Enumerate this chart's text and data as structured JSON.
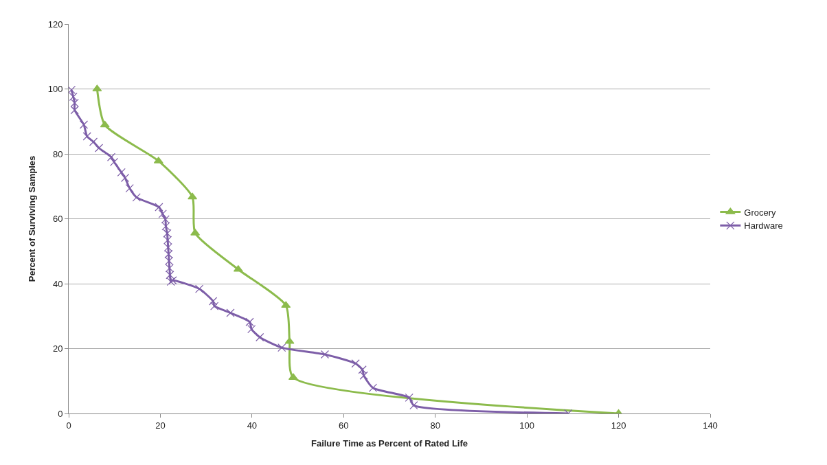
{
  "chart_data": {
    "type": "line",
    "xlabel": "Failure Time as Percent of Rated Life",
    "ylabel": "Percent of Surviving Samples",
    "xlim": [
      0,
      140
    ],
    "xticks": [
      0,
      20,
      40,
      60,
      80,
      100,
      120,
      140
    ],
    "ylim": [
      0,
      120
    ],
    "yticks": [
      0,
      20,
      40,
      60,
      80,
      100,
      120
    ],
    "grid": "y",
    "legend": "right",
    "series": [
      {
        "name": "Grocery",
        "color": "#8cbb4c",
        "marker": "triangle",
        "x": [
          6.2,
          7.9,
          19.6,
          27,
          27.6,
          37,
          47.4,
          48.2,
          49,
          120
        ],
        "values": [
          100,
          88.9,
          77.8,
          66.7,
          55.6,
          44.4,
          33.3,
          22.2,
          11.1,
          0
        ]
      },
      {
        "name": "Hardware",
        "color": "#7d5ea8",
        "marker": "cross",
        "x": [
          0.6,
          1,
          1.3,
          1.3,
          3.3,
          4,
          5.4,
          6.6,
          9.3,
          9.9,
          11.5,
          12.3,
          13.3,
          14.8,
          19.7,
          20.5,
          21.1,
          21.2,
          21.5,
          21.6,
          21.7,
          21.8,
          21.9,
          22,
          22.1,
          22.3,
          22.7,
          28.5,
          31.5,
          31.8,
          35.3,
          39.5,
          39.9,
          41.7,
          46.5,
          55.9,
          62.6,
          64.1,
          64.4,
          66.4,
          74.3,
          75.3,
          109
        ],
        "values": [
          99.7,
          97.6,
          95.7,
          93.5,
          89,
          85.4,
          83.7,
          81.8,
          79,
          77.5,
          74.3,
          72.6,
          69.4,
          66.6,
          63.6,
          61.5,
          59.8,
          57.7,
          55.5,
          53.4,
          51.2,
          49.1,
          47,
          44.8,
          42.7,
          40.6,
          41,
          38.4,
          34.6,
          33.1,
          31,
          28.2,
          26,
          23.5,
          20.3,
          18.2,
          15.4,
          13.5,
          11.7,
          7.9,
          4.9,
          2.5,
          0
        ]
      }
    ]
  }
}
